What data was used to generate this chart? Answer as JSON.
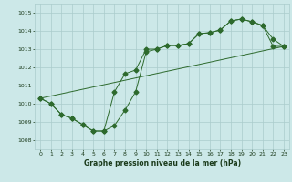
{
  "xlabel": "Graphe pression niveau de la mer (hPa)",
  "bg_color": "#cce8e8",
  "grid_color": "#aacccc",
  "line_color": "#2d6a2d",
  "ylim": [
    1007.5,
    1015.5
  ],
  "xlim": [
    -0.5,
    23.5
  ],
  "yticks": [
    1008,
    1009,
    1010,
    1011,
    1012,
    1013,
    1014,
    1015
  ],
  "xticks": [
    0,
    1,
    2,
    3,
    4,
    5,
    6,
    7,
    8,
    9,
    10,
    11,
    12,
    13,
    14,
    15,
    16,
    17,
    18,
    19,
    20,
    21,
    22,
    23
  ],
  "series1_x": [
    0,
    1,
    2,
    3,
    4,
    5,
    6,
    7,
    8,
    9,
    10,
    11,
    12,
    13,
    14,
    15,
    16,
    17,
    18,
    19,
    20,
    21,
    22,
    23
  ],
  "series1_y": [
    1010.3,
    1010.0,
    1009.4,
    1009.2,
    1008.85,
    1008.5,
    1008.5,
    1008.8,
    1009.65,
    1010.65,
    1012.85,
    1013.0,
    1013.2,
    1013.2,
    1013.3,
    1013.85,
    1013.9,
    1014.05,
    1014.55,
    1014.65,
    1014.5,
    1014.3,
    1013.15,
    1013.15
  ],
  "series2_x": [
    0,
    1,
    2,
    3,
    4,
    5,
    6,
    7,
    8,
    9,
    10,
    11,
    12,
    13,
    14,
    15,
    16,
    17,
    18,
    19,
    20,
    21,
    22,
    23
  ],
  "series2_y": [
    1010.3,
    1010.0,
    1009.4,
    1009.2,
    1008.85,
    1008.5,
    1008.5,
    1010.65,
    1011.65,
    1011.85,
    1013.0,
    1013.0,
    1013.2,
    1013.2,
    1013.3,
    1013.85,
    1013.9,
    1014.05,
    1014.55,
    1014.65,
    1014.5,
    1014.3,
    1013.55,
    1013.15
  ],
  "series3_x": [
    0,
    23
  ],
  "series3_y": [
    1010.3,
    1013.15
  ],
  "figsize": [
    3.2,
    2.0
  ],
  "dpi": 100
}
